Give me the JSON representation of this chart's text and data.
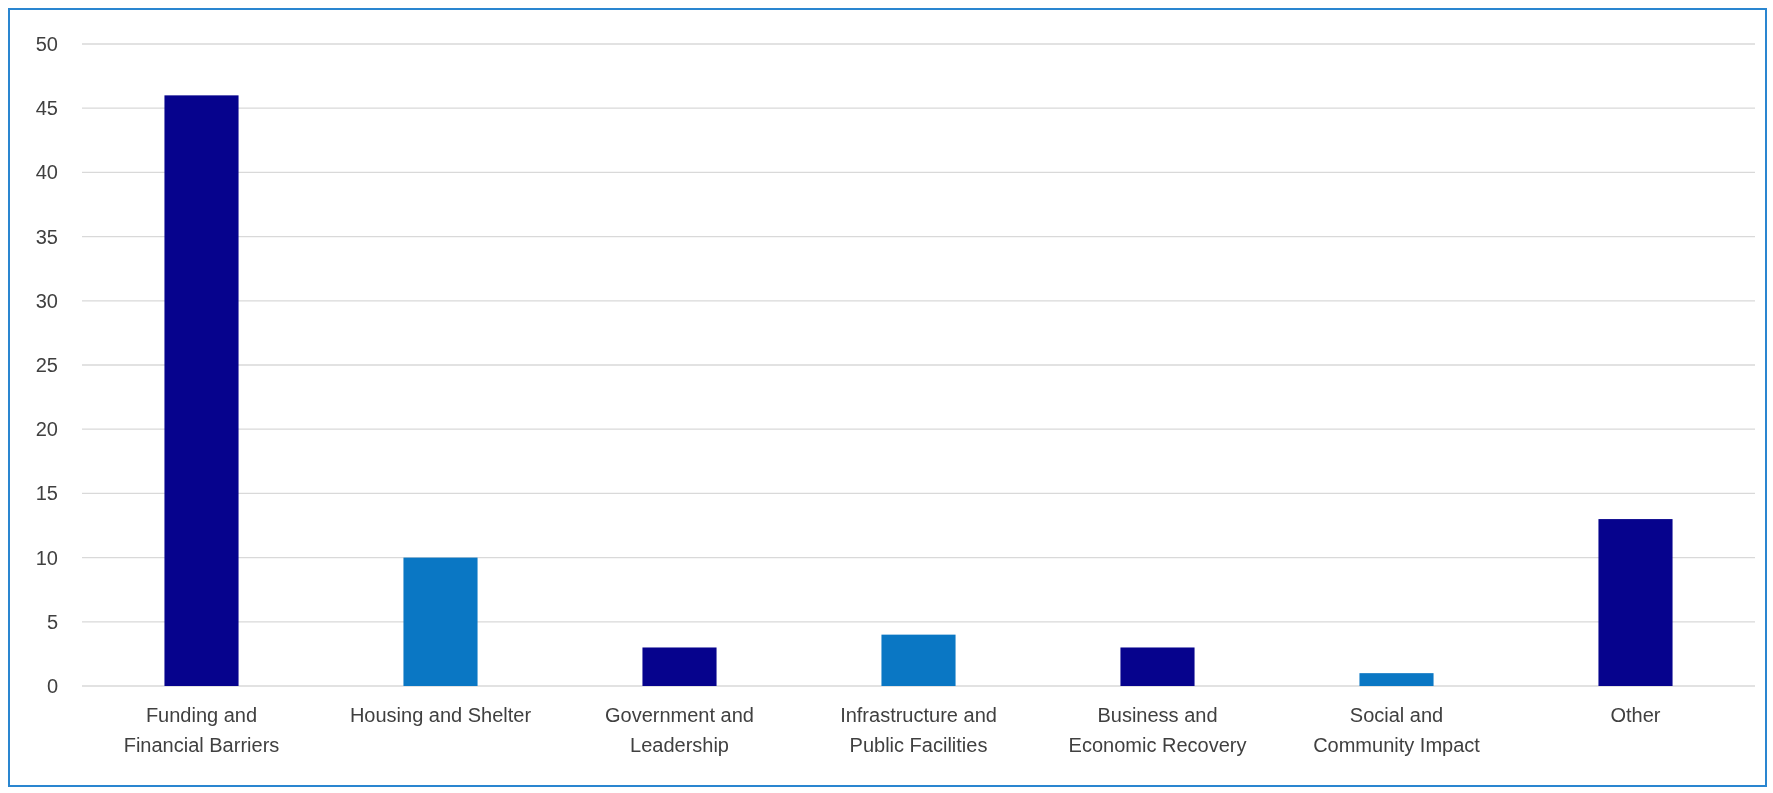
{
  "chart_data": {
    "type": "bar",
    "categories": [
      "Funding and Financial Barriers",
      "Housing and Shelter",
      "Government and Leadership",
      "Infrastructure and Public Facilities",
      "Business and Economic Recovery",
      "Social and Community Impact",
      "Other"
    ],
    "values": [
      46,
      10,
      3,
      4,
      3,
      1,
      13
    ],
    "colors": [
      "#06038d",
      "#0a77c4",
      "#06038d",
      "#0a77c4",
      "#06038d",
      "#0a77c4",
      "#06038d"
    ],
    "ylim": [
      0,
      50
    ],
    "yticks": [
      0,
      5,
      10,
      15,
      20,
      25,
      30,
      35,
      40,
      45,
      50
    ],
    "grid": "y"
  }
}
